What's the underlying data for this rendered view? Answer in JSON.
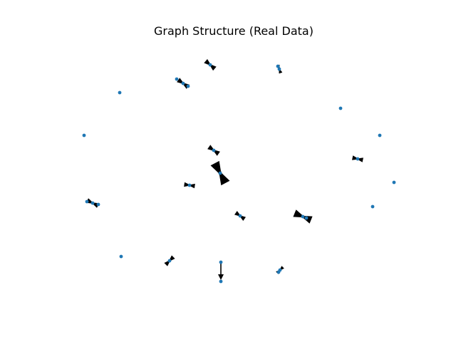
{
  "figure": {
    "title": "Graph Structure (Real Data)"
  },
  "colors": {
    "node": "#1f77b4",
    "edge": "#000000"
  },
  "nodes": [
    {
      "id": "n1"
    },
    {
      "id": "n2"
    },
    {
      "id": "n3"
    },
    {
      "id": "n4"
    },
    {
      "id": "n5"
    },
    {
      "id": "n6"
    },
    {
      "id": "n7"
    },
    {
      "id": "n8"
    },
    {
      "id": "n9"
    },
    {
      "id": "n10"
    },
    {
      "id": "n11"
    },
    {
      "id": "n12"
    },
    {
      "id": "n13"
    },
    {
      "id": "n14"
    },
    {
      "id": "n15"
    },
    {
      "id": "n16"
    },
    {
      "id": "n17"
    },
    {
      "id": "n18"
    },
    {
      "id": "n19"
    },
    {
      "id": "n20"
    },
    {
      "id": "n21"
    },
    {
      "id": "n22"
    }
  ],
  "self_loops": [
    "n1",
    "n2",
    "n3",
    "n4",
    "n5",
    "n6",
    "n7",
    "n8",
    "n9",
    "n10",
    "n11",
    "n12",
    "n13"
  ],
  "edges": [
    {
      "source": "n14",
      "target": "n15"
    }
  ]
}
